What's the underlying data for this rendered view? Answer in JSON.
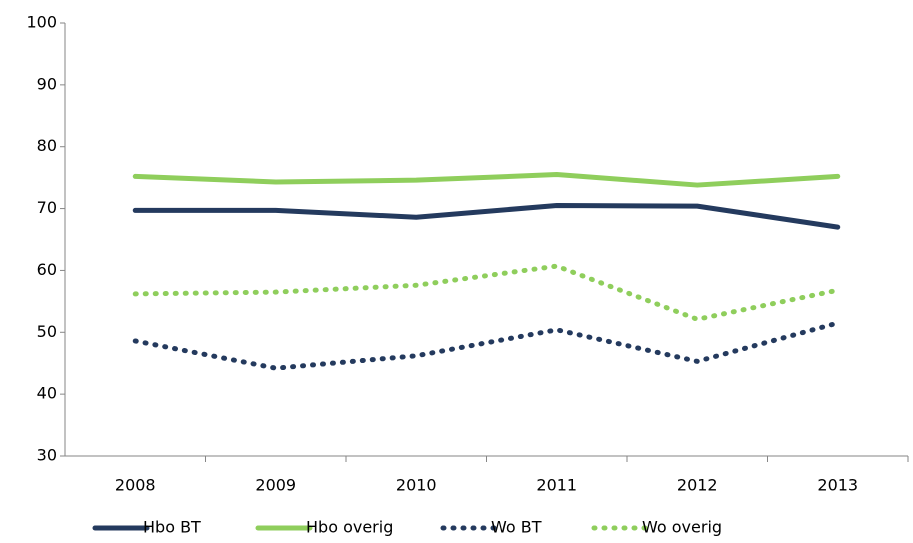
{
  "chart_data": {
    "type": "line",
    "categories": [
      "2008",
      "2009",
      "2010",
      "2011",
      "2012",
      "2013"
    ],
    "series": [
      {
        "name": "Hbo BT",
        "color": "#243a5e",
        "dash": "solid",
        "values": [
          69.7,
          69.7,
          68.6,
          70.5,
          70.4,
          67.0
        ]
      },
      {
        "name": "Hbo overig",
        "color": "#8fce5c",
        "dash": "solid",
        "values": [
          75.2,
          74.3,
          74.6,
          75.5,
          73.8,
          75.2
        ]
      },
      {
        "name": "Wo BT",
        "color": "#243a5e",
        "dash": "dotted",
        "values": [
          48.6,
          44.2,
          46.2,
          50.4,
          45.3,
          51.5
        ]
      },
      {
        "name": "Wo overig",
        "color": "#8fce5c",
        "dash": "dotted",
        "values": [
          56.2,
          56.5,
          57.6,
          60.7,
          52.1,
          56.8
        ]
      }
    ],
    "ylim": [
      30,
      100
    ],
    "yticks": [
      30,
      40,
      50,
      60,
      70,
      80,
      90,
      100
    ],
    "grid": false,
    "legend": "bottom"
  }
}
